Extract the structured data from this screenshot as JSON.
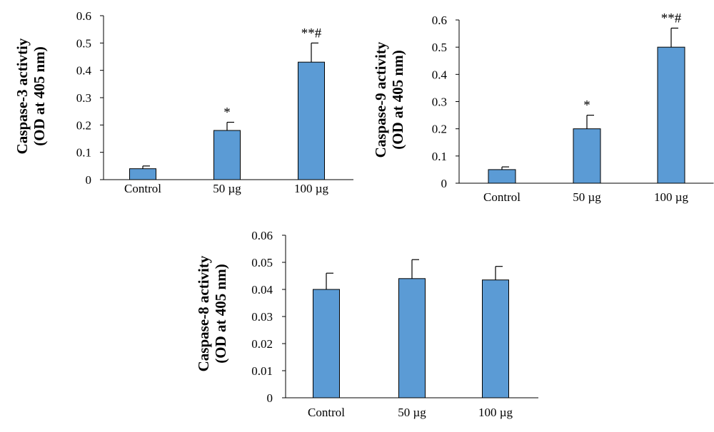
{
  "chart_data": [
    {
      "type": "bar",
      "ylabel": [
        "Caspase-3 activtiy",
        "(OD at 405 nm)"
      ],
      "categories": [
        "Control",
        "50 µg",
        "100 µg"
      ],
      "values": [
        0.04,
        0.18,
        0.43
      ],
      "errors": [
        0.01,
        0.03,
        0.07
      ],
      "annotations": [
        "",
        "*",
        "**#"
      ],
      "ylim": [
        0,
        0.6
      ],
      "yticks": [
        "0",
        "0.1",
        "0.2",
        "0.3",
        "0.4",
        "0.5",
        "0.6"
      ],
      "bar_color": "#5b9bd5",
      "grid": false
    },
    {
      "type": "bar",
      "ylabel": [
        "Caspase-9 activity",
        "(OD at 405 nm)"
      ],
      "categories": [
        "Control",
        "50 µg",
        "100 µg"
      ],
      "values": [
        0.05,
        0.2,
        0.5
      ],
      "errors": [
        0.01,
        0.05,
        0.07
      ],
      "annotations": [
        "",
        "*",
        "**#"
      ],
      "ylim": [
        0,
        0.6
      ],
      "yticks": [
        "0",
        "0.1",
        "0.2",
        "0.3",
        "0.4",
        "0.5",
        "0.6"
      ],
      "bar_color": "#5b9bd5",
      "grid": false
    },
    {
      "type": "bar",
      "ylabel": [
        "Caspase-8 activity",
        "(OD at 405 nm)"
      ],
      "categories": [
        "Control",
        "50 µg",
        "100 µg"
      ],
      "values": [
        0.04,
        0.044,
        0.0435
      ],
      "errors": [
        0.006,
        0.007,
        0.005
      ],
      "annotations": [
        "",
        "",
        ""
      ],
      "ylim": [
        0,
        0.06
      ],
      "yticks": [
        "0",
        "0.01",
        "0.02",
        "0.03",
        "0.04",
        "0.05",
        "0.06"
      ],
      "bar_color": "#5b9bd5",
      "grid": false
    }
  ]
}
